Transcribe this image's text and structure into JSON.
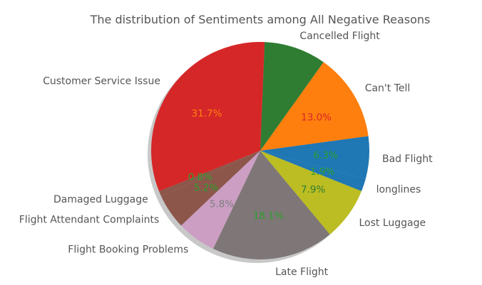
{
  "chart_data": {
    "type": "pie",
    "title": "The distribution of Sentiments among All Negative Reasons",
    "shadow": true,
    "slices": [
      {
        "label": "Bad Flight",
        "value": 6.3,
        "pct_label": "6.3%",
        "color": "#1f77b4",
        "pct_color": "#2ca02c"
      },
      {
        "label": "Can't Tell",
        "value": 13.0,
        "pct_label": "13.0%",
        "color": "#ff7f0e",
        "pct_color": "#d62728"
      },
      {
        "label": "Cancelled Flight",
        "value": 9.2,
        "pct_label": "",
        "color": "#2e7d32",
        "pct_color": "#2e7d32"
      },
      {
        "label": "Customer Service Issue",
        "value": 31.7,
        "pct_label": "31.7%",
        "color": "#d62728",
        "pct_color": "#ff7f0e"
      },
      {
        "label": "Damaged Luggage",
        "value": 0.8,
        "pct_label": "0.8%",
        "color": "#8c564b",
        "pct_color": "#2ca02c"
      },
      {
        "label": "Flight Attendant Complaints",
        "value": 5.2,
        "pct_label": "5.2%",
        "color": "#8c564b",
        "pct_color": "#2ca02c"
      },
      {
        "label": "Flight Booking Problems",
        "value": 5.8,
        "pct_label": "5.8%",
        "color": "#cc9ec4",
        "pct_color": "#7f7f7f"
      },
      {
        "label": "Late Flight",
        "value": 18.1,
        "pct_label": "18.1%",
        "color": "#7f7777",
        "pct_color": "#2ca02c"
      },
      {
        "label": "Lost Luggage",
        "value": 7.9,
        "pct_label": "7.9%",
        "color": "#bcbd22",
        "pct_color": "#2e7d32"
      },
      {
        "label": "longlines",
        "value": 1.9,
        "pct_label": "1.9%",
        "color": "#1f77b4",
        "pct_color": "#2ca02c"
      }
    ]
  }
}
